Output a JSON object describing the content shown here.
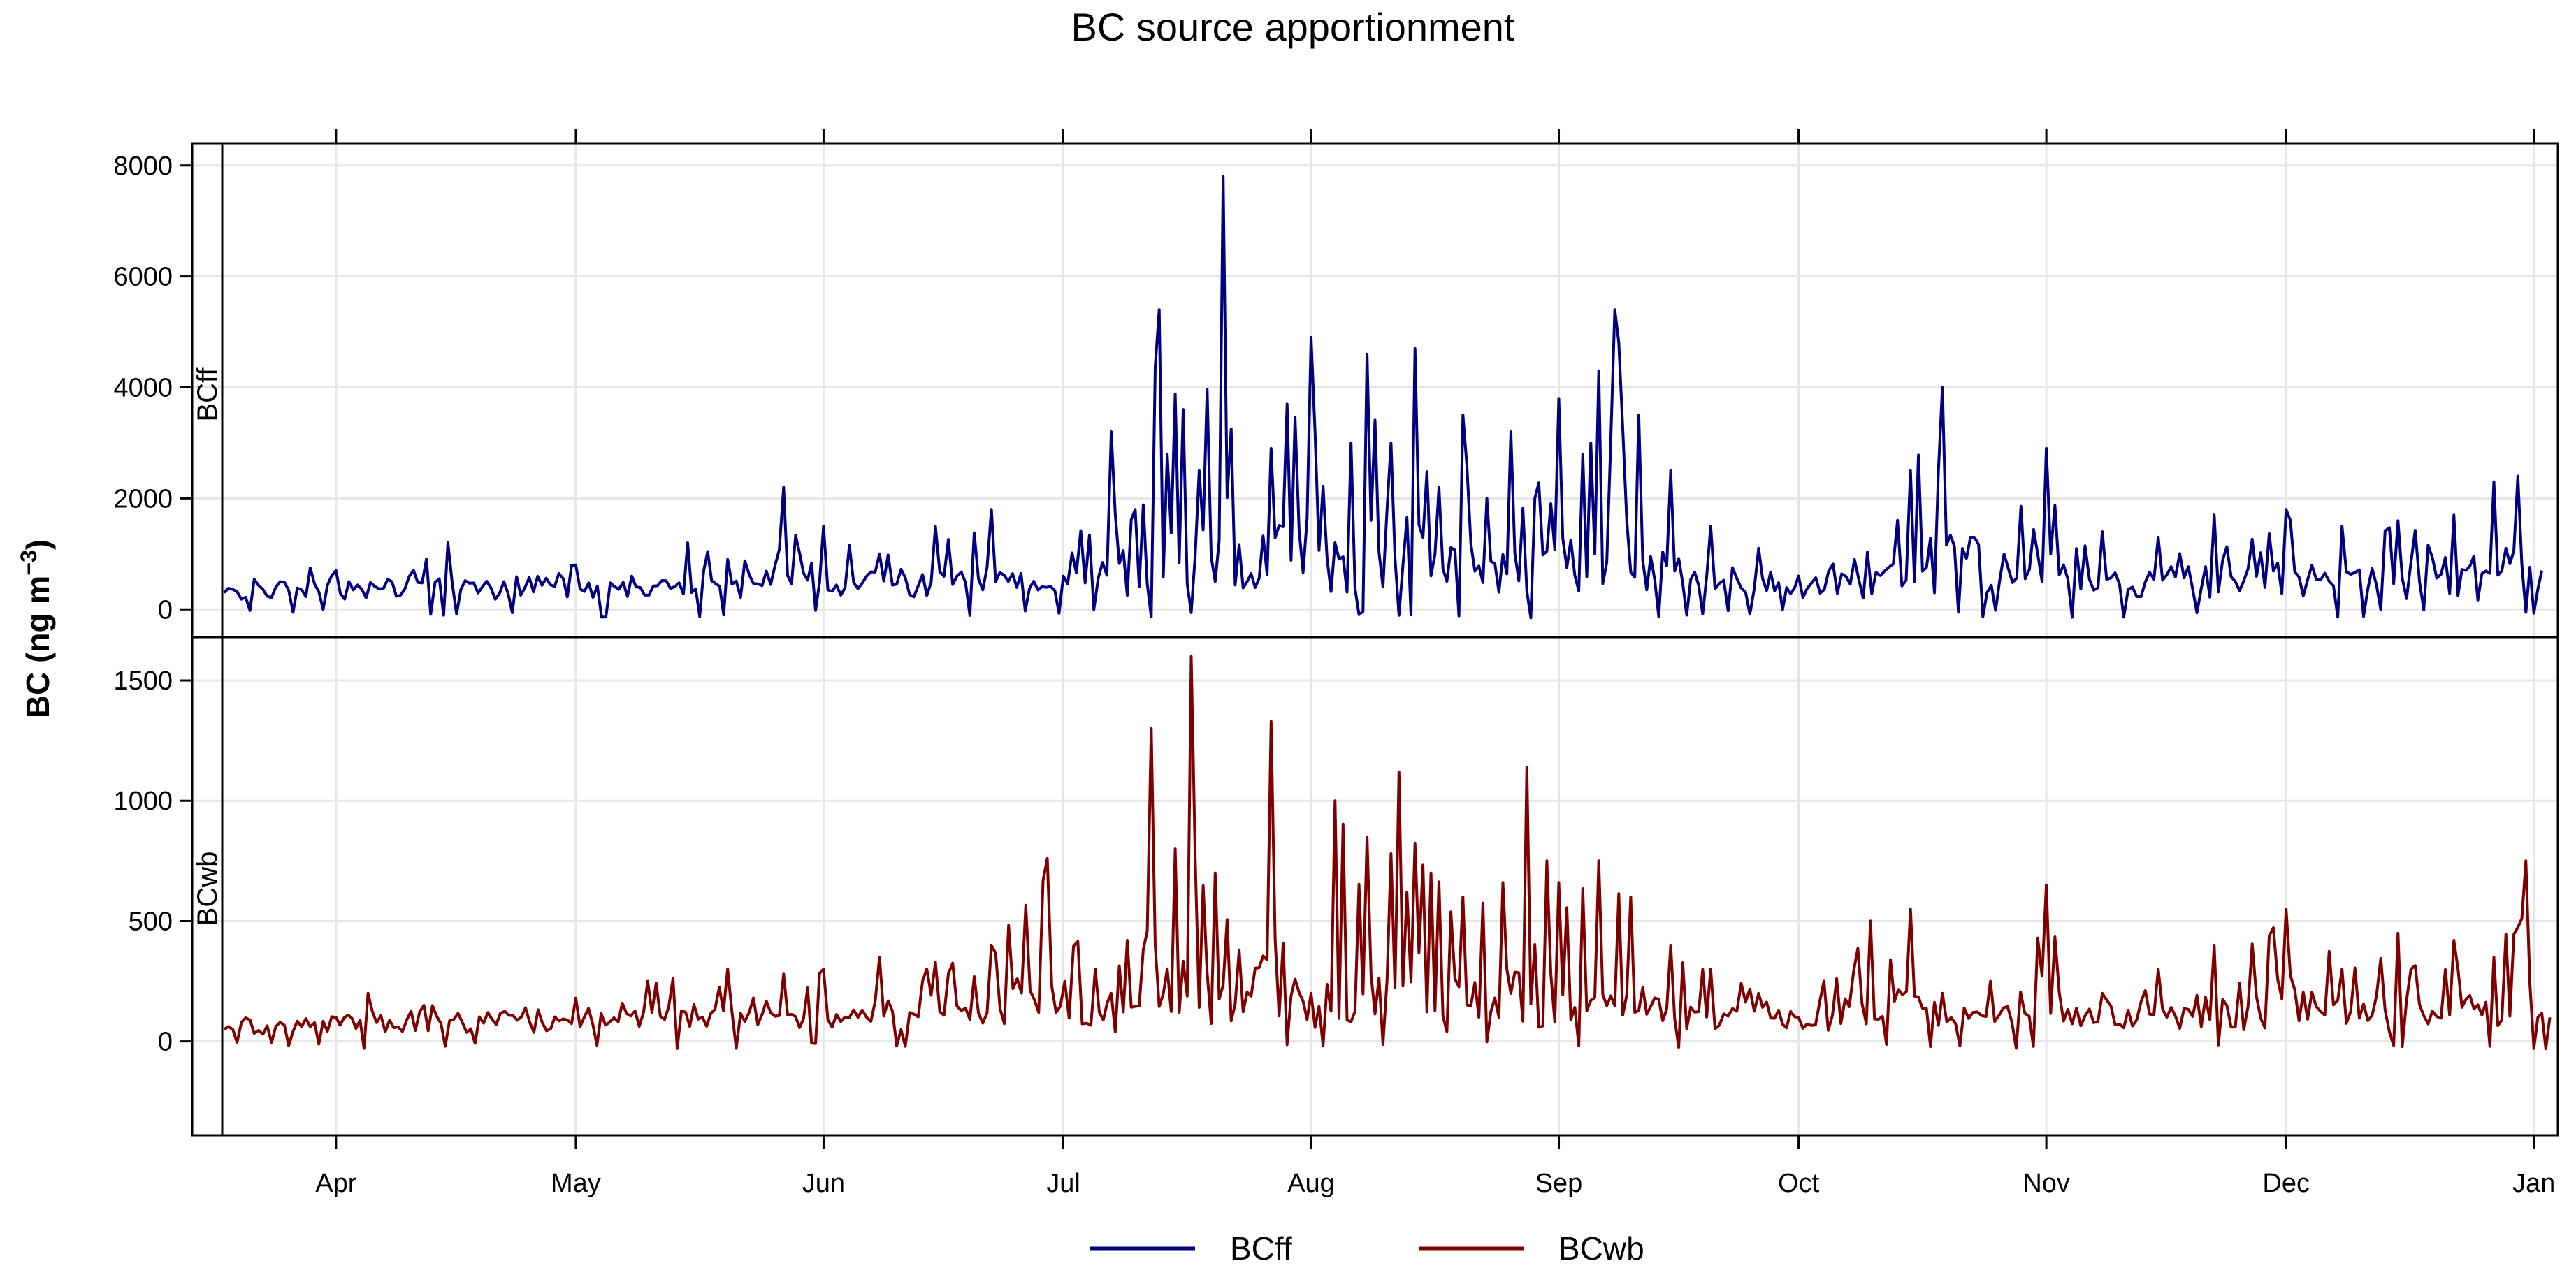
{
  "chart_data": {
    "type": "line",
    "title": "BC source apportionment",
    "ylabel": "BC  (ng m",
    "ylabel_superscript": "−3",
    "ylabel_close": ")",
    "x_ticks": [
      "Apr",
      "May",
      "Jun",
      "Jul",
      "Aug",
      "Sep",
      "Oct",
      "Nov",
      "Dec",
      "Jan"
    ],
    "x_range": [
      "Mar 14",
      "Jan 4"
    ],
    "grid": true,
    "legend_position": "bottom",
    "panels": [
      {
        "strip_label": "BCff",
        "ylim": [
          -500,
          8400
        ],
        "yticks": [
          0,
          2000,
          4000,
          6000,
          8000
        ],
        "series": {
          "name": "BCff",
          "color": "#000080",
          "x": [
            "Mar 18",
            "Mar 25",
            "Apr 1",
            "Apr 8",
            "Apr 15",
            "Apr 22",
            "May 1",
            "May 8",
            "May 15",
            "May 20",
            "May 27",
            "Jun 1",
            "Jun 8",
            "Jun 15",
            "Jun 22",
            "Jul 1",
            "Jul 7",
            "Jul 10",
            "Jul 13",
            "Jul 16",
            "Jul 18",
            "Jul 21",
            "Jul 24",
            "Jul 27",
            "Jul 29",
            "Aug 1",
            "Aug 4",
            "Aug 6",
            "Aug 8",
            "Aug 11",
            "Aug 14",
            "Aug 17",
            "Aug 20",
            "Aug 23",
            "Aug 26",
            "Aug 29",
            "Sep 1",
            "Sep 4",
            "Sep 6",
            "Sep 8",
            "Sep 11",
            "Sep 15",
            "Sep 20",
            "Sep 26",
            "Oct 1",
            "Oct 8",
            "Oct 15",
            "Oct 19",
            "Oct 23",
            "Nov 1",
            "Nov 8",
            "Nov 15",
            "Nov 22",
            "Dec 1",
            "Dec 8",
            "Dec 15",
            "Dec 22",
            "Dec 27",
            "Dec 30",
            "Jan 2"
          ],
          "y": [
            300,
            500,
            700,
            500,
            1200,
            500,
            800,
            600,
            1200,
            900,
            2200,
            1500,
            1000,
            1500,
            1800,
            600,
            3200,
            1800,
            5400,
            3600,
            2500,
            7800,
            500,
            2900,
            3700,
            4900,
            1200,
            3000,
            4600,
            3000,
            4700,
            2200,
            3500,
            2000,
            3200,
            2000,
            3800,
            2800,
            4300,
            5400,
            3500,
            2500,
            1500,
            1100,
            600,
            900,
            2500,
            4000,
            1300,
            2900,
            1400,
            1300,
            1700,
            1800,
            1500,
            1600,
            1700,
            2300,
            2400,
            700
          ]
        }
      },
      {
        "strip_label": "BCwb",
        "ylim": [
          -390,
          1680
        ],
        "yticks": [
          0,
          500,
          1000,
          1500
        ],
        "series": {
          "name": "BCwb",
          "color": "#800000",
          "x": [
            "Mar 18",
            "Mar 25",
            "Apr 1",
            "Apr 5",
            "Apr 12",
            "Apr 20",
            "May 1",
            "May 10",
            "May 20",
            "May 27",
            "Jun 1",
            "Jun 8",
            "Jun 15",
            "Jun 22",
            "Jun 29",
            "Jul 5",
            "Jul 9",
            "Jul 12",
            "Jul 15",
            "Jul 17",
            "Jul 20",
            "Jul 23",
            "Jul 27",
            "Aug 1",
            "Aug 4",
            "Aug 8",
            "Aug 12",
            "Aug 16",
            "Aug 20",
            "Aug 25",
            "Aug 28",
            "Sep 1",
            "Sep 6",
            "Sep 10",
            "Sep 15",
            "Sep 20",
            "Sep 26",
            "Oct 1",
            "Oct 10",
            "Oct 15",
            "Oct 19",
            "Oct 25",
            "Nov 1",
            "Nov 8",
            "Nov 15",
            "Nov 22",
            "Dec 1",
            "Dec 8",
            "Dec 15",
            "Dec 22",
            "Dec 27",
            "Dec 31",
            "Jan 3"
          ],
          "y": [
            50,
            80,
            100,
            200,
            150,
            120,
            180,
            250,
            300,
            280,
            300,
            350,
            330,
            400,
            760,
            300,
            420,
            1300,
            800,
            1600,
            700,
            380,
            1330,
            200,
            1000,
            850,
            1120,
            700,
            600,
            660,
            1140,
            660,
            750,
            600,
            400,
            300,
            200,
            100,
            500,
            550,
            200,
            250,
            650,
            200,
            300,
            400,
            550,
            300,
            450,
            420,
            350,
            750,
            100
          ]
        }
      }
    ],
    "legend": [
      {
        "name": "BCff",
        "color": "#000080"
      },
      {
        "name": "BCwb",
        "color": "#800000"
      }
    ]
  }
}
